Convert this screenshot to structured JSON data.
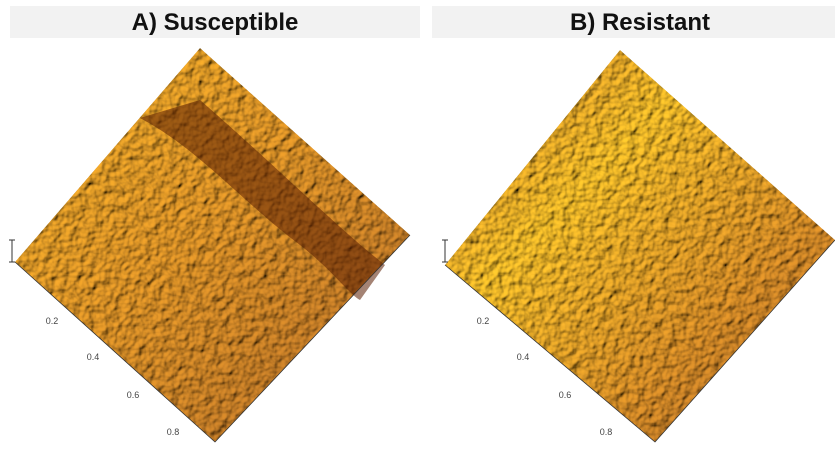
{
  "panels": [
    {
      "title": "A) Susceptible",
      "axis_labels": [
        "0.2",
        "0.4",
        "0.6",
        "0.8"
      ]
    },
    {
      "title": "B) Resistant",
      "axis_labels": [
        "0.2",
        "0.4",
        "0.6",
        "0.8"
      ]
    }
  ]
}
